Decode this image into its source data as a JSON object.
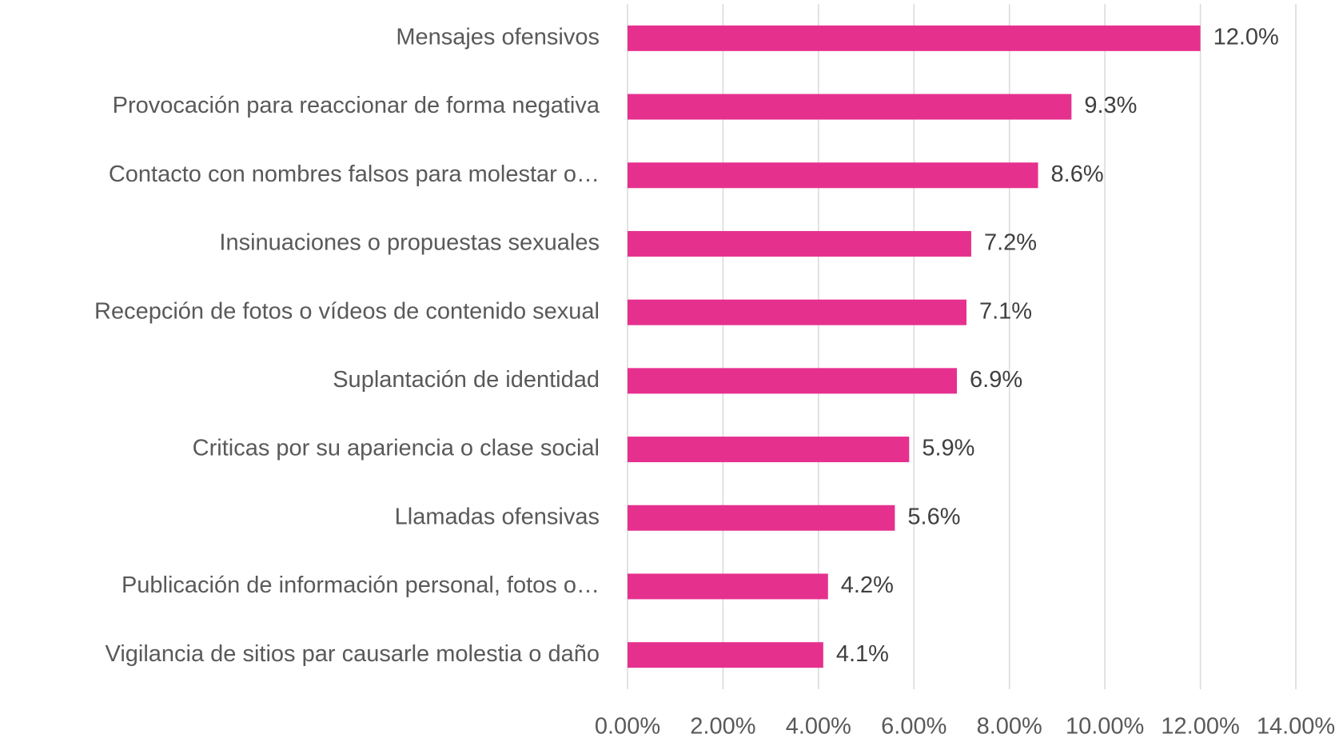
{
  "chart_data": {
    "type": "bar",
    "orientation": "horizontal",
    "categories": [
      "Mensajes ofensivos",
      "Provocación para reaccionar de forma negativa",
      "Contacto con nombres falsos para molestar o…",
      "Insinuaciones o propuestas sexuales",
      "Recepción de fotos o vídeos de contenido sexual",
      "Suplantación de identidad",
      "Criticas por su apariencia o clase social",
      "Llamadas ofensivas",
      "Publicación de información personal, fotos o…",
      "Vigilancia de sitios par causarle molestia o daño"
    ],
    "values": [
      12.0,
      9.3,
      8.6,
      7.2,
      7.1,
      6.9,
      5.9,
      5.6,
      4.2,
      4.1
    ],
    "value_labels": [
      "12.0%",
      "9.3%",
      "8.6%",
      "7.2%",
      "7.1%",
      "6.9%",
      "5.9%",
      "5.6%",
      "4.2%",
      "4.1%"
    ],
    "color": "#e6308e",
    "xlim": [
      0,
      14
    ],
    "xticks": [
      {
        "value": 0,
        "label": "0.00%"
      },
      {
        "value": 2,
        "label": "2.00%"
      },
      {
        "value": 4,
        "label": "4.00%"
      },
      {
        "value": 6,
        "label": "6.00%"
      },
      {
        "value": 8,
        "label": "8.00%"
      },
      {
        "value": 10,
        "label": "10.00%"
      },
      {
        "value": 12,
        "label": "12.00%"
      },
      {
        "value": 14,
        "label": "14.00%"
      }
    ],
    "grid": true
  }
}
